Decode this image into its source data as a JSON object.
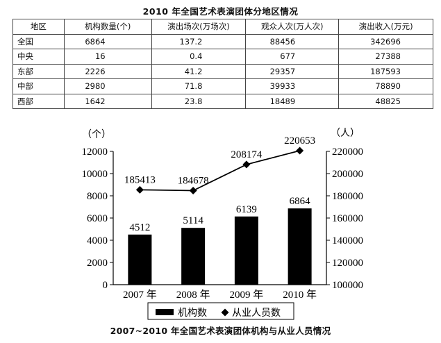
{
  "table": {
    "title": "2010 年全国艺术表演团体分地区情况",
    "headers": [
      "地区",
      "机构数量(个)",
      "演出场次(万场次)",
      "观众人次(万人次)",
      "演出收入(万元)"
    ],
    "rows": [
      {
        "region": "全国",
        "orgs": "6864",
        "shows": "137.2",
        "audience": "88456",
        "revenue": "342696"
      },
      {
        "region": "中央",
        "orgs": "16",
        "shows": "0.4",
        "audience": "677",
        "revenue": "27388"
      },
      {
        "region": "东部",
        "orgs": "2226",
        "shows": "41.2",
        "audience": "29357",
        "revenue": "187593"
      },
      {
        "region": "中部",
        "orgs": "2980",
        "shows": "71.8",
        "audience": "39933",
        "revenue": "78890"
      },
      {
        "region": "西部",
        "orgs": "1642",
        "shows": "23.8",
        "audience": "18489",
        "revenue": "48825"
      }
    ]
  },
  "chart_data": {
    "type": "bar",
    "title": "2007~2010 年全国艺术表演团体机构与从业人员情况",
    "categories": [
      "2007 年",
      "2008 年",
      "2009 年",
      "2010 年"
    ],
    "series": [
      {
        "name": "机构数",
        "type": "bar",
        "axis": "left",
        "color": "#000000",
        "values": [
          4512,
          5114,
          6139,
          6864
        ]
      },
      {
        "name": "从业人员数",
        "type": "line",
        "axis": "right",
        "marker": "diamond",
        "color": "#000000",
        "values": [
          185413,
          184678,
          208174,
          220653
        ]
      }
    ],
    "left_axis": {
      "unit_label": "（个）",
      "min": 0,
      "max": 12000,
      "step": 2000,
      "ticks": [
        "0",
        "2000",
        "4000",
        "6000",
        "8000",
        "10000",
        "12000"
      ]
    },
    "right_axis": {
      "unit_label": "（人）",
      "min": 100000,
      "max": 220000,
      "step": 20000,
      "ticks": [
        "100000",
        "120000",
        "140000",
        "160000",
        "180000",
        "200000",
        "220000"
      ]
    },
    "grid": false,
    "legend_position": "bottom"
  }
}
